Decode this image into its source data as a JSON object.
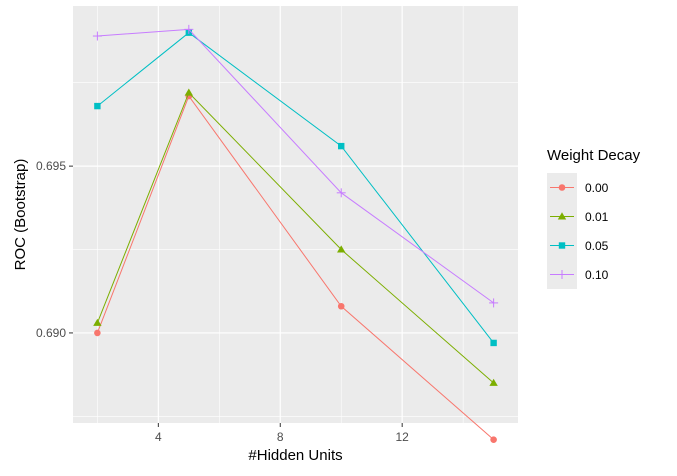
{
  "chart_data": {
    "type": "line",
    "title": "",
    "xlabel": "#Hidden Units",
    "ylabel": "ROC (Bootstrap)",
    "xlim": [
      1.2,
      15.8
    ],
    "ylim": [
      0.6873,
      0.6998
    ],
    "x_ticks": [
      4,
      8,
      12
    ],
    "x_tick_labels": [
      "4",
      "8",
      "12"
    ],
    "y_ticks": [
      0.69,
      0.695
    ],
    "y_tick_labels": [
      "0.690",
      "0.695"
    ],
    "grid": true,
    "legend": {
      "title": "Weight Decay",
      "placement": "right"
    },
    "series": [
      {
        "name": "0.00",
        "color": "#F8766D",
        "marker": "circle",
        "x": [
          2,
          5,
          10,
          15
        ],
        "y": [
          0.69,
          0.6971,
          0.6908,
          0.6868
        ]
      },
      {
        "name": "0.01",
        "color": "#7CAE00",
        "marker": "triangle",
        "x": [
          2,
          5,
          10,
          15
        ],
        "y": [
          0.6903,
          0.6972,
          0.6925,
          0.6885
        ]
      },
      {
        "name": "0.05",
        "color": "#00BFC4",
        "marker": "square",
        "x": [
          2,
          5,
          10,
          15
        ],
        "y": [
          0.6968,
          0.699,
          0.6956,
          0.6897
        ]
      },
      {
        "name": "0.10",
        "color": "#C77CFF",
        "marker": "plus",
        "x": [
          2,
          5,
          10,
          15
        ],
        "y": [
          0.6989,
          0.6991,
          0.6942,
          0.6909
        ]
      }
    ]
  }
}
